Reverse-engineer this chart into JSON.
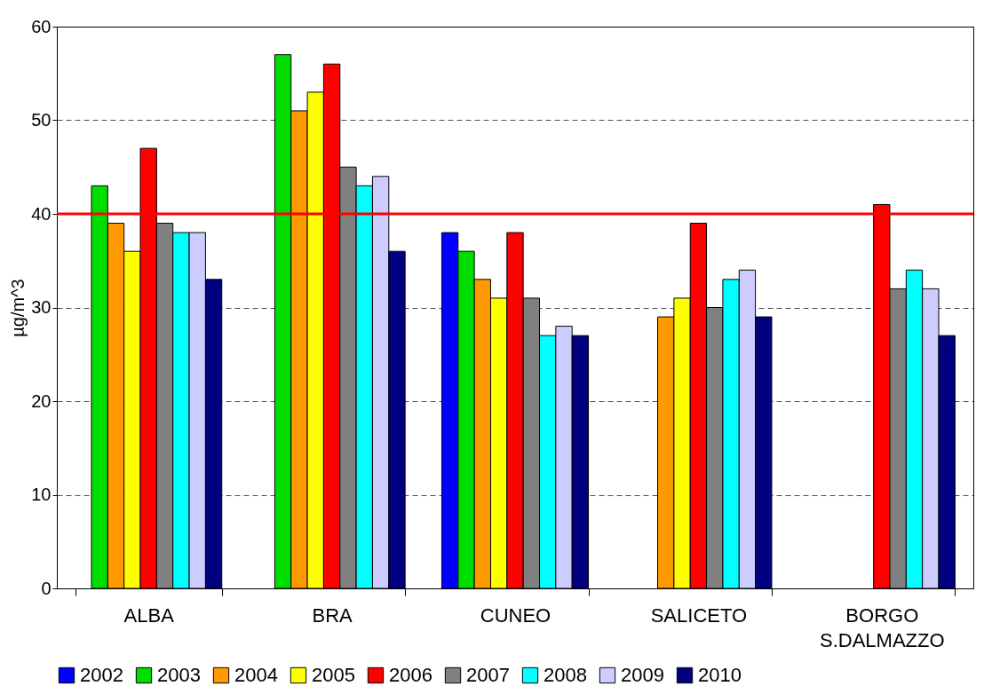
{
  "chart_data": {
    "type": "bar",
    "ylabel": "µg/m^3",
    "categories": [
      "ALBA",
      "BRA",
      "CUNEO",
      "SALICETO",
      "BORGO S.DALMAZZO"
    ],
    "series": [
      {
        "name": "2002",
        "color": "#0000ff",
        "values": [
          null,
          null,
          38,
          null,
          null
        ]
      },
      {
        "name": "2003",
        "color": "#00dd00",
        "values": [
          43,
          57,
          36,
          null,
          null
        ]
      },
      {
        "name": "2004",
        "color": "#ff9900",
        "values": [
          39,
          51,
          33,
          29,
          null
        ]
      },
      {
        "name": "2005",
        "color": "#ffff00",
        "values": [
          36,
          53,
          31,
          31,
          null
        ]
      },
      {
        "name": "2006",
        "color": "#ff0000",
        "values": [
          47,
          56,
          38,
          39,
          41
        ]
      },
      {
        "name": "2007",
        "color": "#808080",
        "values": [
          39,
          45,
          31,
          30,
          32
        ]
      },
      {
        "name": "2008",
        "color": "#00ffff",
        "values": [
          38,
          43,
          27,
          33,
          34
        ]
      },
      {
        "name": "2009",
        "color": "#ccccff",
        "values": [
          38,
          44,
          28,
          34,
          32
        ]
      },
      {
        "name": "2010",
        "color": "#000080",
        "values": [
          33,
          36,
          27,
          29,
          27
        ]
      }
    ],
    "ylim": [
      0,
      60
    ],
    "yticks": [
      0,
      10,
      20,
      30,
      40,
      50,
      60
    ],
    "grid": "y",
    "legend": "bottom",
    "ref_lines": [
      {
        "axis": "y",
        "value": 40,
        "label": null,
        "color": "#ff0000"
      }
    ]
  }
}
